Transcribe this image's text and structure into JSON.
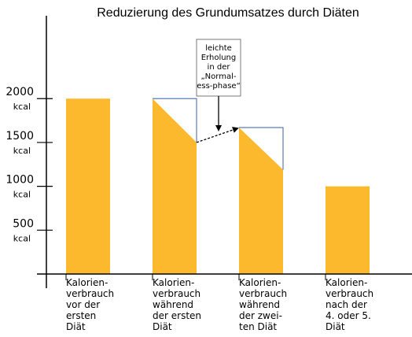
{
  "chart_data": {
    "type": "bar",
    "title": "Reduzierung des Grundumsatzes durch Diäten",
    "xlabel": "",
    "ylabel": "",
    "ylim": [
      0,
      2900
    ],
    "y_ticks": [
      {
        "value": 2000,
        "number": "2000",
        "unit": "kcal"
      },
      {
        "value": 1500,
        "number": "1500",
        "unit": "kcal"
      },
      {
        "value": 1000,
        "number": "1000",
        "unit": "kcal"
      },
      {
        "value": 500,
        "number": "500",
        "unit": "kcal"
      }
    ],
    "categories": [
      [
        "Kalorien-",
        "verbrauch",
        "vor der",
        "ersten",
        "Diät"
      ],
      [
        "Kalorien-",
        "verbrauch",
        "während",
        "der ersten",
        "Diät"
      ],
      [
        "Kalorien-",
        "verbrauch",
        "während",
        "der zwei-",
        "ten Diät"
      ],
      [
        "Kalorien-",
        "verbrauch",
        "nach der",
        "4. oder 5.",
        "Diät"
      ]
    ],
    "bars": [
      {
        "start": 2000,
        "end": 2000
      },
      {
        "start": 2000,
        "end": 1500
      },
      {
        "start": 1670,
        "end": 1190
      },
      {
        "start": 1000,
        "end": 1000
      }
    ],
    "annotation": {
      "lines": [
        "leichte",
        "Erholung",
        "in der",
        "„Normal-",
        "ess-phase“"
      ],
      "from_value": 1500,
      "to_value": 1670
    },
    "colors": {
      "bar": "#FDB92E",
      "outline": "#5B7DB4",
      "axis": "#000000"
    },
    "grid": false,
    "legend": "none"
  }
}
